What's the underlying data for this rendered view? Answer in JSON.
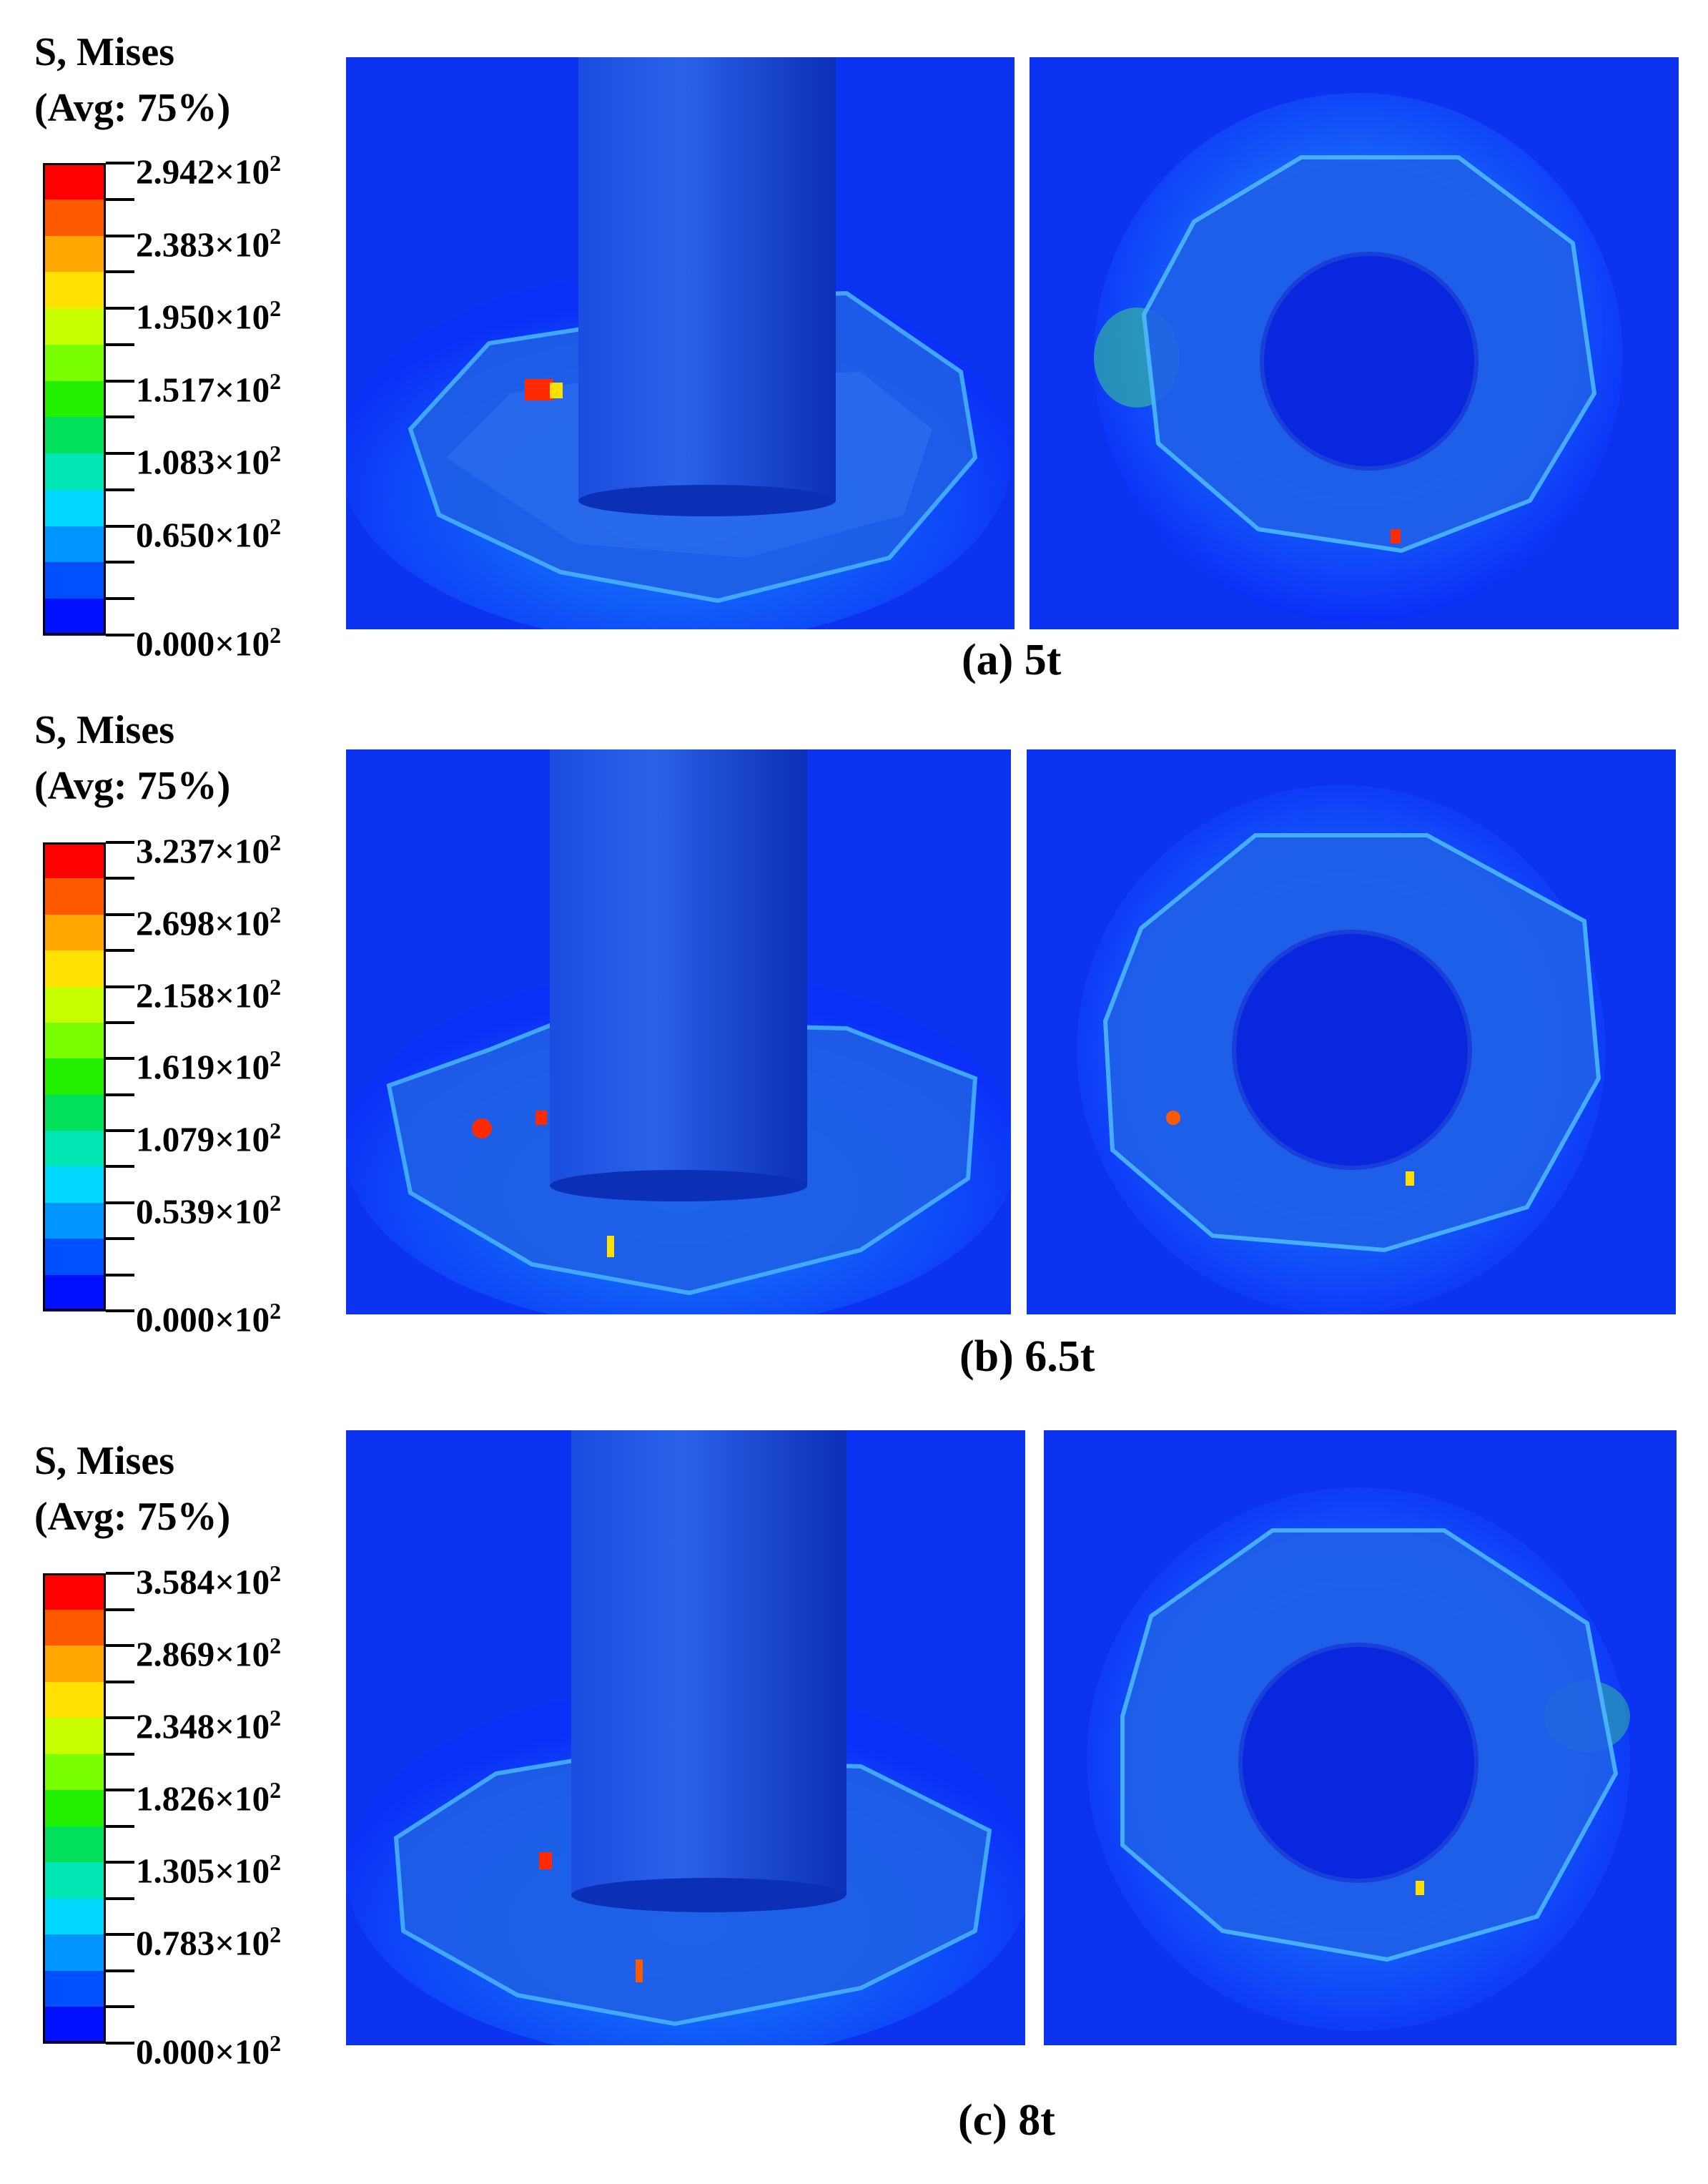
{
  "legend": {
    "title_line1": "S, Mises",
    "title_line2": "(Avg: 75%)",
    "exponent_base": "×10",
    "exponent": "2"
  },
  "colorbar_colors": [
    "#ff0000",
    "#ff5a00",
    "#ffa600",
    "#ffe000",
    "#c8ff00",
    "#7aff00",
    "#22f000",
    "#00e05a",
    "#00e6b4",
    "#00d8ff",
    "#0096ff",
    "#0050ff",
    "#0010ff"
  ],
  "panels": [
    {
      "caption": "(a) 5t",
      "ticks": [
        "2.942",
        "2.383",
        "1.950",
        "1.517",
        "1.083",
        "0.650",
        "0.000"
      ]
    },
    {
      "caption": "(b) 6.5t",
      "ticks": [
        "3.237",
        "2.698",
        "2.158",
        "1.619",
        "1.079",
        "0.539",
        "0.000"
      ]
    },
    {
      "caption": "(c) 8t",
      "ticks": [
        "3.584",
        "2.869",
        "2.348",
        "1.826",
        "1.305",
        "0.783",
        "0.000"
      ]
    }
  ]
}
